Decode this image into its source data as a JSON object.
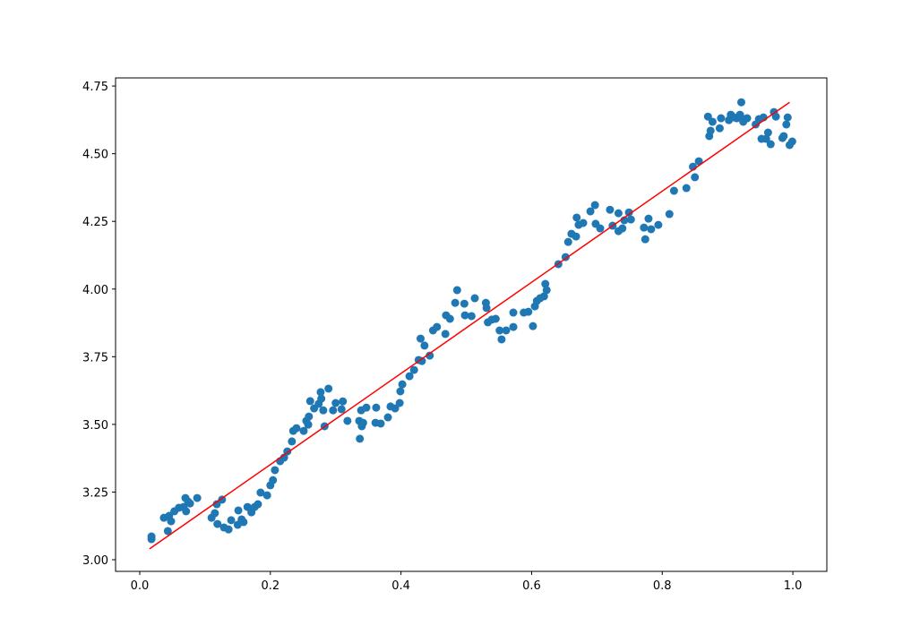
{
  "chart_data": {
    "type": "scatter",
    "xlim": [
      -0.037,
      1.052
    ],
    "ylim": [
      2.957,
      4.78
    ],
    "xticks": [
      {
        "value": 0,
        "label": "0.0"
      },
      {
        "value": 0.2,
        "label": "0.2"
      },
      {
        "value": 0.4,
        "label": "0.4"
      },
      {
        "value": 0.6,
        "label": "0.6"
      },
      {
        "value": 0.8,
        "label": "0.8"
      },
      {
        "value": 1,
        "label": "1.0"
      }
    ],
    "yticks": [
      {
        "value": 3,
        "label": "3.00"
      },
      3.25,
      {
        "value": 3.5,
        "label": "3.50"
      },
      3.75,
      {
        "value": 4,
        "label": "4.00"
      },
      4.25,
      {
        "value": 4.5,
        "label": "4.50"
      },
      4.75
    ],
    "grid": false,
    "series": [
      {
        "type": "scatter",
        "color": "#1f77b4",
        "x": [
          0.018,
          0.018,
          0.037,
          0.043,
          0.045,
          0.048,
          0.053,
          0.06,
          0.067,
          0.07,
          0.071,
          0.074,
          0.077,
          0.088,
          0.11,
          0.115,
          0.118,
          0.119,
          0.126,
          0.129,
          0.136,
          0.14,
          0.15,
          0.151,
          0.156,
          0.159,
          0.165,
          0.171,
          0.176,
          0.181,
          0.185,
          0.195,
          0.2,
          0.204,
          0.207,
          0.215,
          0.221,
          0.226,
          0.233,
          0.235,
          0.24,
          0.251,
          0.255,
          0.258,
          0.259,
          0.261,
          0.267,
          0.274,
          0.277,
          0.278,
          0.281,
          0.283,
          0.289,
          0.296,
          0.3,
          0.309,
          0.311,
          0.318,
          0.336,
          0.337,
          0.339,
          0.34,
          0.342,
          0.347,
          0.361,
          0.362,
          0.369,
          0.38,
          0.384,
          0.391,
          0.398,
          0.399,
          0.402,
          0.413,
          0.42,
          0.427,
          0.43,
          0.432,
          0.436,
          0.444,
          0.449,
          0.455,
          0.468,
          0.469,
          0.475,
          0.483,
          0.486,
          0.497,
          0.498,
          0.508,
          0.513,
          0.53,
          0.531,
          0.533,
          0.539,
          0.545,
          0.551,
          0.554,
          0.561,
          0.572,
          0.572,
          0.588,
          0.595,
          0.602,
          0.605,
          0.608,
          0.613,
          0.619,
          0.621,
          0.623,
          0.641,
          0.652,
          0.656,
          0.661,
          0.668,
          0.669,
          0.672,
          0.679,
          0.69,
          0.697,
          0.698,
          0.705,
          0.72,
          0.724,
          0.733,
          0.733,
          0.739,
          0.742,
          0.749,
          0.752,
          0.772,
          0.774,
          0.779,
          0.783,
          0.794,
          0.811,
          0.818,
          0.837,
          0.847,
          0.85,
          0.856,
          0.87,
          0.872,
          0.874,
          0.877,
          0.888,
          0.89,
          0.902,
          0.905,
          0.91,
          0.914,
          0.919,
          0.921,
          0.922,
          0.924,
          0.93,
          0.943,
          0.948,
          0.952,
          0.955,
          0.959,
          0.962,
          0.966,
          0.971,
          0.974,
          0.984,
          0.986,
          0.99,
          0.992,
          0.995,
          0.999
        ],
        "values": [
          3.086,
          3.076,
          3.155,
          3.106,
          3.162,
          3.142,
          3.179,
          3.192,
          3.195,
          3.228,
          3.179,
          3.215,
          3.208,
          3.228,
          3.155,
          3.172,
          3.205,
          3.132,
          3.222,
          3.119,
          3.112,
          3.146,
          3.129,
          3.182,
          3.149,
          3.139,
          3.195,
          3.175,
          3.195,
          3.205,
          3.248,
          3.238,
          3.275,
          3.294,
          3.331,
          3.364,
          3.377,
          3.4,
          3.437,
          3.476,
          3.486,
          3.476,
          3.513,
          3.499,
          3.529,
          3.586,
          3.559,
          3.576,
          3.619,
          3.595,
          3.552,
          3.493,
          3.632,
          3.552,
          3.579,
          3.556,
          3.585,
          3.513,
          3.513,
          3.447,
          3.552,
          3.493,
          3.506,
          3.562,
          3.506,
          3.562,
          3.503,
          3.526,
          3.566,
          3.559,
          3.579,
          3.622,
          3.648,
          3.678,
          3.701,
          3.738,
          3.817,
          3.734,
          3.791,
          3.754,
          3.847,
          3.86,
          3.834,
          3.903,
          3.89,
          3.949,
          3.996,
          3.946,
          3.903,
          3.9,
          3.966,
          3.949,
          3.93,
          3.877,
          3.887,
          3.89,
          3.847,
          3.814,
          3.847,
          3.86,
          3.913,
          3.913,
          3.916,
          3.863,
          3.936,
          3.956,
          3.966,
          3.973,
          4.019,
          3.996,
          4.092,
          4.118,
          4.174,
          4.204,
          4.194,
          4.264,
          4.237,
          4.244,
          4.287,
          4.31,
          4.241,
          4.224,
          4.293,
          4.234,
          4.214,
          4.28,
          4.224,
          4.254,
          4.283,
          4.257,
          4.227,
          4.184,
          4.26,
          4.221,
          4.237,
          4.277,
          4.363,
          4.373,
          4.452,
          4.413,
          4.472,
          4.637,
          4.565,
          4.585,
          4.618,
          4.594,
          4.631,
          4.624,
          4.644,
          4.634,
          4.631,
          4.644,
          4.69,
          4.631,
          4.618,
          4.631,
          4.608,
          4.628,
          4.555,
          4.634,
          4.555,
          4.578,
          4.535,
          4.654,
          4.637,
          4.558,
          4.565,
          4.608,
          4.634,
          4.532,
          4.545
        ]
      },
      {
        "type": "line",
        "color": "#ff0000",
        "x": [
          0.015,
          0.995
        ],
        "values": [
          3.04,
          4.69
        ]
      }
    ]
  }
}
